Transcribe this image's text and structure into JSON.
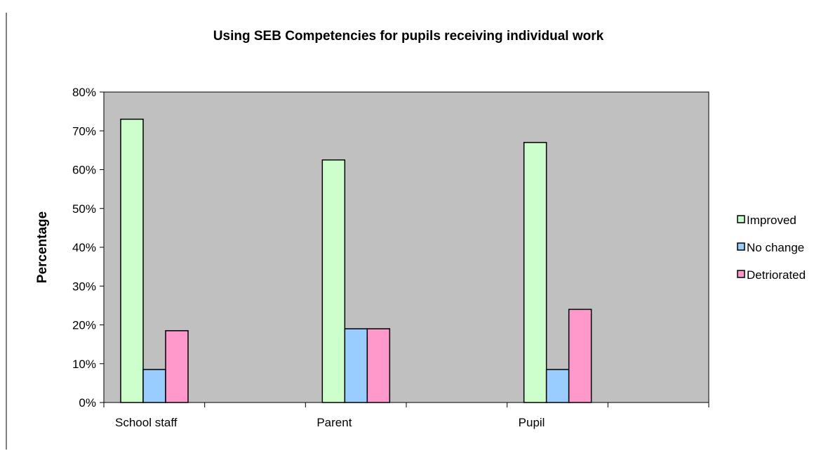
{
  "chart_data": {
    "type": "bar",
    "title": "Using SEB Competencies for pupils receiving individual work",
    "xlabel": "",
    "ylabel": "Percentage",
    "categories": [
      "School staff",
      "Parent",
      "Pupil"
    ],
    "series": [
      {
        "name": "Improved",
        "values": [
          73,
          62.5,
          67
        ],
        "color": "#ccffcc"
      },
      {
        "name": "No change",
        "values": [
          8.5,
          19,
          8.5
        ],
        "color": "#99ccff"
      },
      {
        "name": "Detriorated",
        "values": [
          18.5,
          19,
          24
        ],
        "color": "#ff99cc"
      }
    ],
    "ylim": [
      0,
      80
    ],
    "yticks": [
      0,
      10,
      20,
      30,
      40,
      50,
      60,
      70,
      80
    ],
    "ytick_labels": [
      "0%",
      "10%",
      "20%",
      "30%",
      "40%",
      "50%",
      "60%",
      "70%",
      "80%"
    ],
    "plot_background": "#c0c0c0",
    "grid": false,
    "legend_position": "right"
  }
}
